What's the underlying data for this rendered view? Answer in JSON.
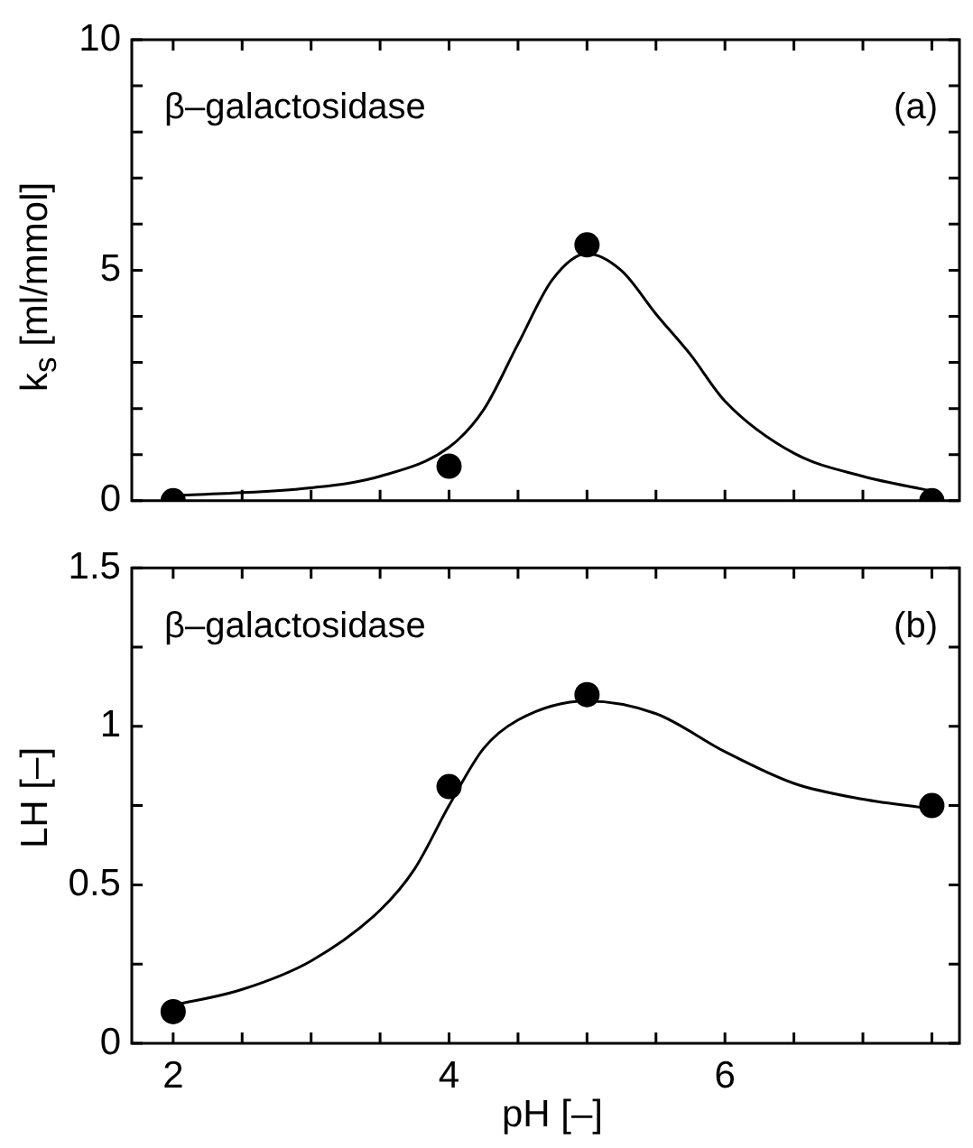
{
  "chart_data": [
    {
      "type": "scatter",
      "ylabel": "k$_{s}$ [ml/mmol]",
      "annotations": [
        "β–galactosidase",
        "(a)"
      ],
      "xlim": [
        1.7,
        7.7
      ],
      "xticks": [
        {
          "value": 2,
          "label": null
        },
        {
          "value": 2.5,
          "label": null
        },
        {
          "value": 3,
          "label": null
        },
        {
          "value": 3.5,
          "label": null
        },
        {
          "value": 4,
          "label": null
        },
        {
          "value": 4.5,
          "label": null
        },
        {
          "value": 5,
          "label": null
        },
        {
          "value": 5.5,
          "label": null
        },
        {
          "value": 6,
          "label": null
        },
        {
          "value": 6.5,
          "label": null
        },
        {
          "value": 7,
          "label": null
        },
        {
          "value": 7.5,
          "label": null
        }
      ],
      "ylim": [
        0,
        10
      ],
      "yticks": [
        0,
        {
          "value": 1,
          "label": null
        },
        {
          "value": 2,
          "label": null
        },
        {
          "value": 3,
          "label": null
        },
        {
          "value": 4,
          "label": null
        },
        5,
        {
          "value": 6,
          "label": null
        },
        {
          "value": 7,
          "label": null
        },
        {
          "value": 8,
          "label": null
        },
        {
          "value": 9,
          "label": null
        },
        10
      ],
      "tick_labels": "y",
      "legend": false,
      "grid": false,
      "series": [
        {
          "color": "#000000",
          "marker": "circle",
          "x": [
            2,
            4,
            5,
            7.5
          ],
          "values": [
            0,
            0.75,
            5.55,
            0
          ]
        },
        {
          "type": "line",
          "color": "#000000",
          "marker": "none",
          "line_style": "solid",
          "x": [
            2,
            3,
            3.5,
            4,
            4.25,
            4.5,
            4.75,
            5,
            5.25,
            5.5,
            5.75,
            6,
            6.5,
            7,
            7.5
          ],
          "values": [
            0.11,
            0.28,
            0.53,
            1.16,
            1.97,
            3.4,
            4.8,
            5.36,
            4.99,
            4.05,
            3.17,
            2.16,
            1.03,
            0.53,
            0.21
          ]
        }
      ]
    },
    {
      "type": "scatter",
      "ylabel": "LH [–]",
      "xlabel": "pH [–]",
      "annotations": [
        "β–galactosidase",
        "(b)"
      ],
      "xlim": [
        1.7,
        7.7
      ],
      "xticks": [
        2,
        {
          "value": 2.5,
          "label": null
        },
        {
          "value": 3,
          "label": null
        },
        {
          "value": 3.5,
          "label": null
        },
        4,
        {
          "value": 4.5,
          "label": null
        },
        {
          "value": 5,
          "label": null
        },
        {
          "value": 5.5,
          "label": null
        },
        6,
        {
          "value": 6.5,
          "label": null
        },
        {
          "value": 7,
          "label": null
        },
        {
          "value": 7.5,
          "label": null
        }
      ],
      "ylim": [
        0,
        1.5
      ],
      "yticks": [
        0,
        {
          "value": 0.25,
          "label": null
        },
        0.5,
        {
          "value": 0.75,
          "label": null
        },
        1,
        {
          "value": 1.25,
          "label": null
        },
        1.5
      ],
      "legend": false,
      "grid": false,
      "series": [
        {
          "color": "#000000",
          "marker": "circle",
          "x": [
            2,
            4,
            5,
            7.5
          ],
          "values": [
            0.1,
            0.81,
            1.1,
            0.75
          ]
        },
        {
          "type": "line",
          "color": "#000000",
          "marker": "none",
          "line_style": "solid",
          "x": [
            2,
            2.5,
            3,
            3.5,
            3.75,
            4,
            4.25,
            4.5,
            5,
            5.5,
            6,
            6.5,
            7,
            7.5
          ],
          "values": [
            0.12,
            0.17,
            0.26,
            0.42,
            0.55,
            0.75,
            0.93,
            1.02,
            1.08,
            1.04,
            0.92,
            0.82,
            0.77,
            0.74
          ]
        }
      ]
    }
  ]
}
